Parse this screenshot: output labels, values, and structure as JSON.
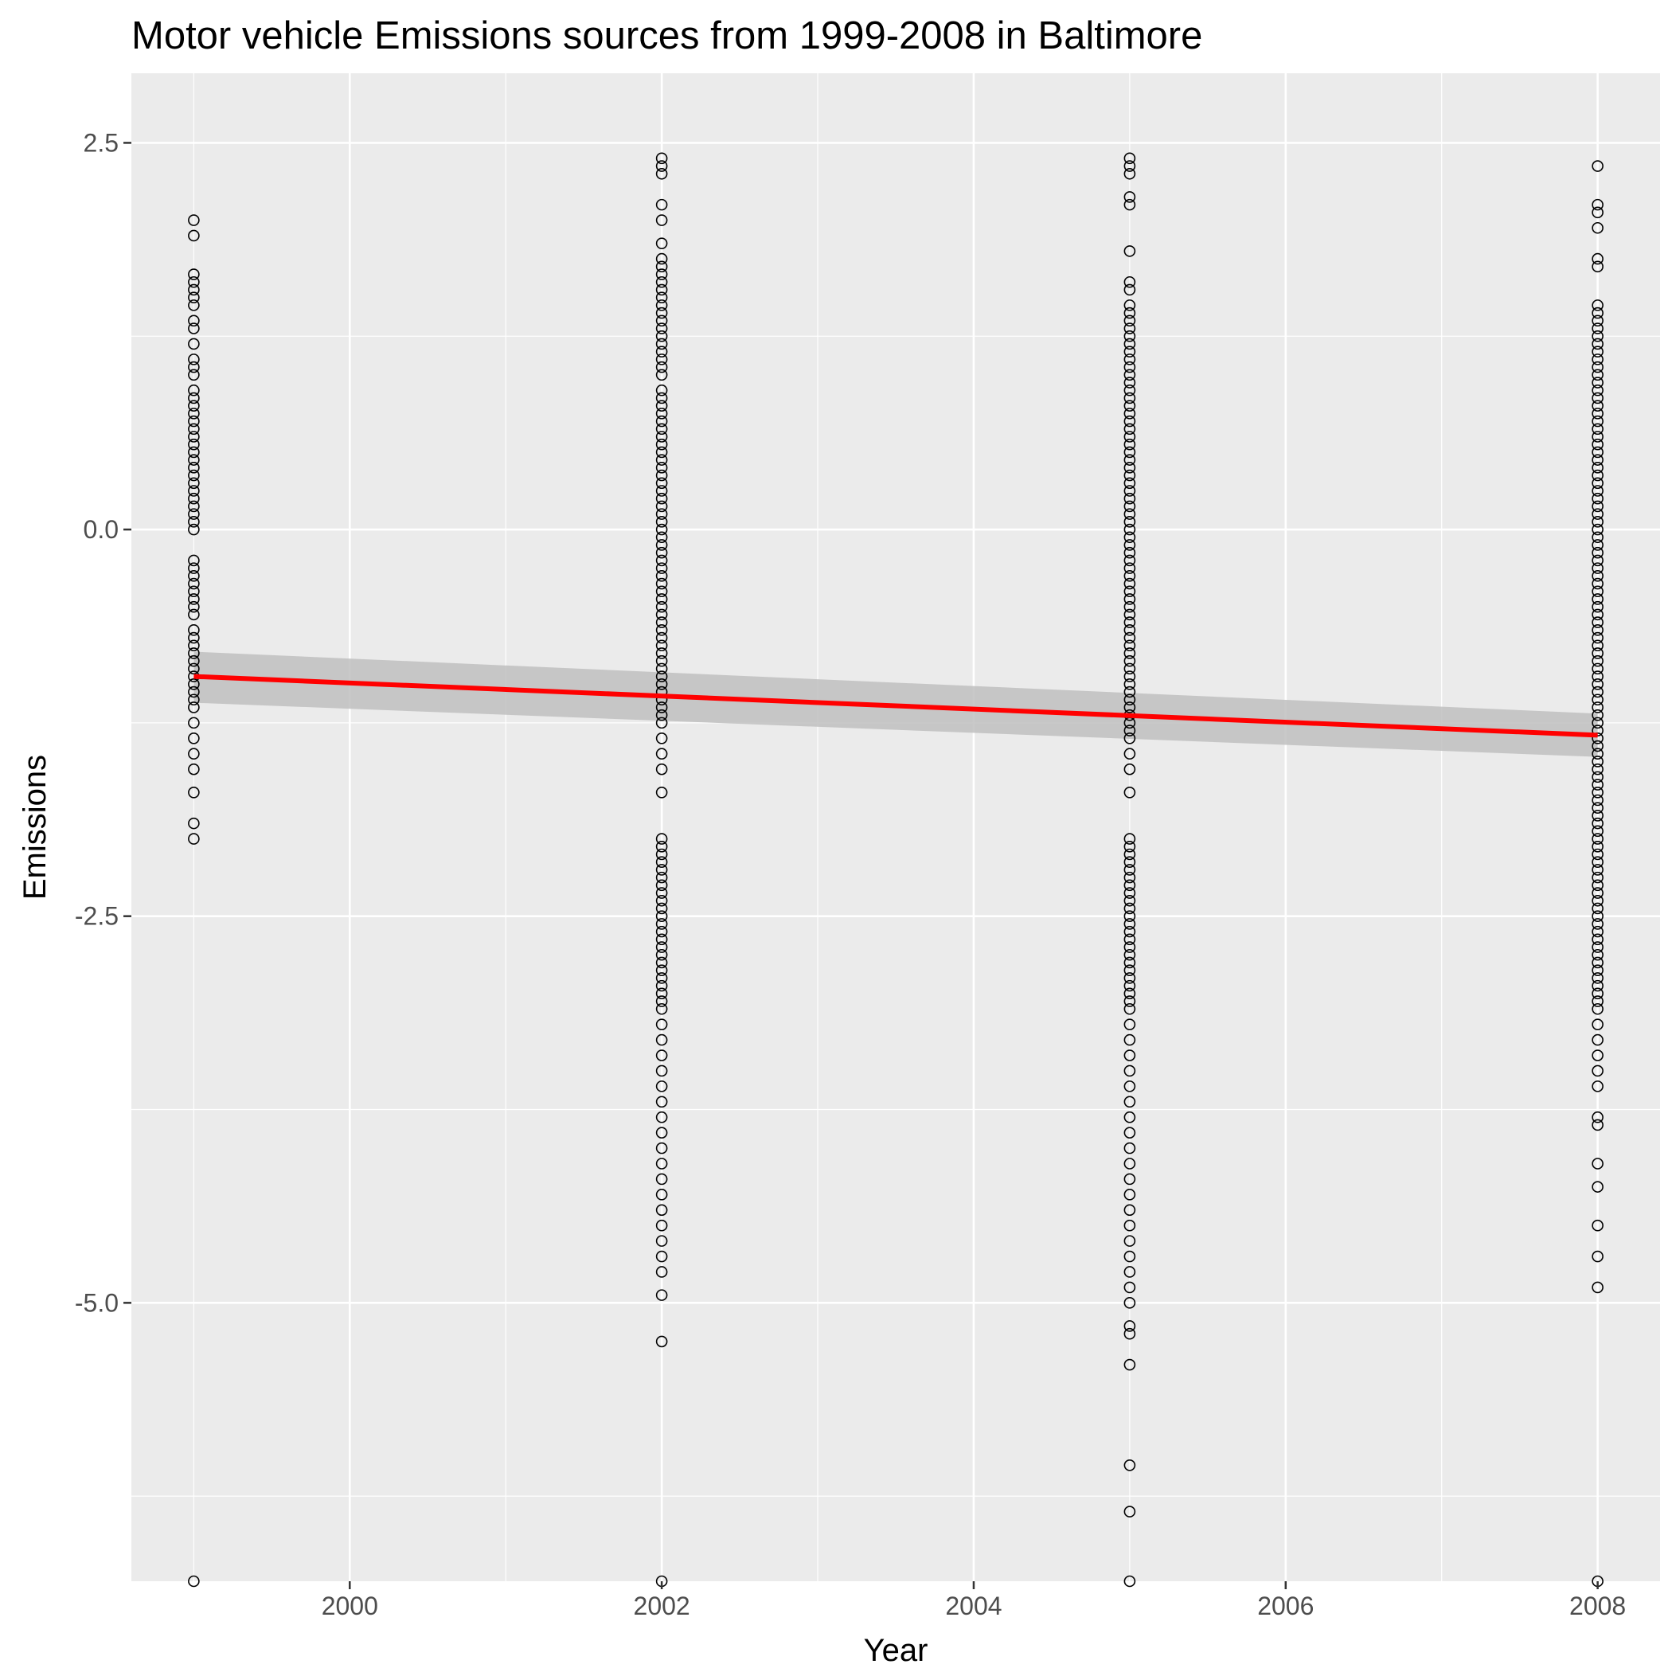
{
  "chart_data": {
    "type": "scatter",
    "title": "Motor vehicle Emissions sources from 1999-2008 in Baltimore",
    "xlabel": "Year",
    "ylabel": "Emissions",
    "xlim": [
      1998.6,
      2008.4
    ],
    "ylim": [
      -6.8,
      2.95
    ],
    "x_ticks": [
      2000,
      2002,
      2004,
      2006,
      2008
    ],
    "y_ticks": [
      2.5,
      0.0,
      -2.5,
      -5.0
    ],
    "y_tick_labels": [
      "2.5",
      "0.0",
      "-2.5",
      "-5.0"
    ],
    "grid": true,
    "legend": "none",
    "colors": {
      "panel_background": "#ebebeb",
      "grid_line": "#ffffff",
      "point_stroke": "#000000",
      "trend_line": "#ff0000",
      "confidence_band": "#bfbfbf"
    },
    "series": [
      {
        "x": 1999,
        "values": [
          2.0,
          1.9,
          1.65,
          1.6,
          1.55,
          1.5,
          1.45,
          1.35,
          1.3,
          1.2,
          1.1,
          1.05,
          1.0,
          0.9,
          0.85,
          0.8,
          0.75,
          0.7,
          0.65,
          0.6,
          0.55,
          0.5,
          0.45,
          0.4,
          0.35,
          0.3,
          0.25,
          0.2,
          0.15,
          0.1,
          0.05,
          0.0,
          -0.2,
          -0.25,
          -0.3,
          -0.35,
          -0.4,
          -0.45,
          -0.5,
          -0.55,
          -0.65,
          -0.7,
          -0.75,
          -0.8,
          -0.85,
          -0.9,
          -0.95,
          -1.0,
          -1.05,
          -1.1,
          -1.15,
          -1.25,
          -1.35,
          -1.45,
          -1.55,
          -1.7,
          -1.9,
          -2.0,
          -6.8
        ]
      },
      {
        "x": 2002,
        "values": [
          2.4,
          2.35,
          2.3,
          2.1,
          2.0,
          1.85,
          1.75,
          1.7,
          1.65,
          1.6,
          1.55,
          1.5,
          1.45,
          1.4,
          1.35,
          1.3,
          1.25,
          1.2,
          1.15,
          1.1,
          1.05,
          1.0,
          0.9,
          0.85,
          0.8,
          0.75,
          0.7,
          0.65,
          0.6,
          0.55,
          0.5,
          0.45,
          0.4,
          0.35,
          0.3,
          0.25,
          0.2,
          0.15,
          0.1,
          0.05,
          0.0,
          -0.05,
          -0.1,
          -0.15,
          -0.2,
          -0.25,
          -0.3,
          -0.35,
          -0.4,
          -0.45,
          -0.5,
          -0.55,
          -0.6,
          -0.65,
          -0.7,
          -0.75,
          -0.8,
          -0.85,
          -0.9,
          -0.95,
          -1.0,
          -1.05,
          -1.1,
          -1.15,
          -1.2,
          -1.25,
          -1.35,
          -1.45,
          -1.55,
          -1.7,
          -2.0,
          -2.05,
          -2.1,
          -2.15,
          -2.2,
          -2.25,
          -2.3,
          -2.35,
          -2.4,
          -2.45,
          -2.5,
          -2.55,
          -2.6,
          -2.65,
          -2.7,
          -2.75,
          -2.8,
          -2.85,
          -2.9,
          -2.95,
          -3.0,
          -3.05,
          -3.1,
          -3.2,
          -3.3,
          -3.4,
          -3.5,
          -3.6,
          -3.7,
          -3.8,
          -3.9,
          -4.0,
          -4.1,
          -4.2,
          -4.3,
          -4.4,
          -4.5,
          -4.6,
          -4.7,
          -4.8,
          -4.95,
          -5.25,
          -6.8
        ]
      },
      {
        "x": 2005,
        "values": [
          2.4,
          2.35,
          2.3,
          2.15,
          2.1,
          1.8,
          1.6,
          1.55,
          1.45,
          1.4,
          1.35,
          1.3,
          1.25,
          1.2,
          1.15,
          1.1,
          1.05,
          1.0,
          0.95,
          0.9,
          0.85,
          0.8,
          0.75,
          0.7,
          0.65,
          0.6,
          0.55,
          0.5,
          0.45,
          0.4,
          0.35,
          0.3,
          0.25,
          0.2,
          0.15,
          0.1,
          0.05,
          0.0,
          -0.05,
          -0.1,
          -0.15,
          -0.2,
          -0.25,
          -0.3,
          -0.35,
          -0.4,
          -0.45,
          -0.5,
          -0.55,
          -0.6,
          -0.65,
          -0.7,
          -0.75,
          -0.8,
          -0.85,
          -0.9,
          -0.95,
          -1.0,
          -1.05,
          -1.1,
          -1.15,
          -1.2,
          -1.25,
          -1.3,
          -1.35,
          -1.45,
          -1.55,
          -1.7,
          -2.0,
          -2.05,
          -2.1,
          -2.15,
          -2.2,
          -2.25,
          -2.3,
          -2.35,
          -2.4,
          -2.45,
          -2.5,
          -2.55,
          -2.6,
          -2.65,
          -2.7,
          -2.75,
          -2.8,
          -2.85,
          -2.9,
          -2.95,
          -3.0,
          -3.05,
          -3.1,
          -3.2,
          -3.3,
          -3.4,
          -3.5,
          -3.6,
          -3.7,
          -3.8,
          -3.9,
          -4.0,
          -4.1,
          -4.2,
          -4.3,
          -4.4,
          -4.5,
          -4.6,
          -4.7,
          -4.8,
          -4.9,
          -5.0,
          -5.15,
          -5.2,
          -5.4,
          -6.05,
          -6.35,
          -6.8
        ]
      },
      {
        "x": 2008,
        "values": [
          2.35,
          2.1,
          2.05,
          1.95,
          1.75,
          1.7,
          1.45,
          1.4,
          1.35,
          1.3,
          1.25,
          1.2,
          1.15,
          1.1,
          1.05,
          1.0,
          0.95,
          0.9,
          0.85,
          0.8,
          0.75,
          0.7,
          0.65,
          0.6,
          0.55,
          0.5,
          0.45,
          0.4,
          0.35,
          0.3,
          0.25,
          0.2,
          0.15,
          0.1,
          0.05,
          0.0,
          -0.05,
          -0.1,
          -0.15,
          -0.2,
          -0.25,
          -0.3,
          -0.35,
          -0.4,
          -0.45,
          -0.5,
          -0.55,
          -0.6,
          -0.65,
          -0.7,
          -0.75,
          -0.8,
          -0.85,
          -0.9,
          -0.95,
          -1.0,
          -1.05,
          -1.1,
          -1.15,
          -1.2,
          -1.25,
          -1.3,
          -1.35,
          -1.4,
          -1.45,
          -1.5,
          -1.55,
          -1.6,
          -1.65,
          -1.7,
          -1.75,
          -1.8,
          -1.85,
          -1.9,
          -1.95,
          -2.0,
          -2.05,
          -2.1,
          -2.15,
          -2.2,
          -2.25,
          -2.3,
          -2.35,
          -2.4,
          -2.45,
          -2.5,
          -2.55,
          -2.6,
          -2.65,
          -2.7,
          -2.75,
          -2.8,
          -2.85,
          -2.9,
          -2.95,
          -3.0,
          -3.05,
          -3.1,
          -3.2,
          -3.3,
          -3.4,
          -3.5,
          -3.6,
          -3.8,
          -3.85,
          -4.1,
          -4.25,
          -4.5,
          -4.7,
          -4.9,
          -6.8
        ]
      }
    ],
    "trend": {
      "x": [
        1999,
        2008
      ],
      "y": [
        -0.95,
        -1.33
      ],
      "band_lower": [
        -1.12,
        -1.47
      ],
      "band_upper": [
        -0.79,
        -1.19
      ]
    }
  }
}
